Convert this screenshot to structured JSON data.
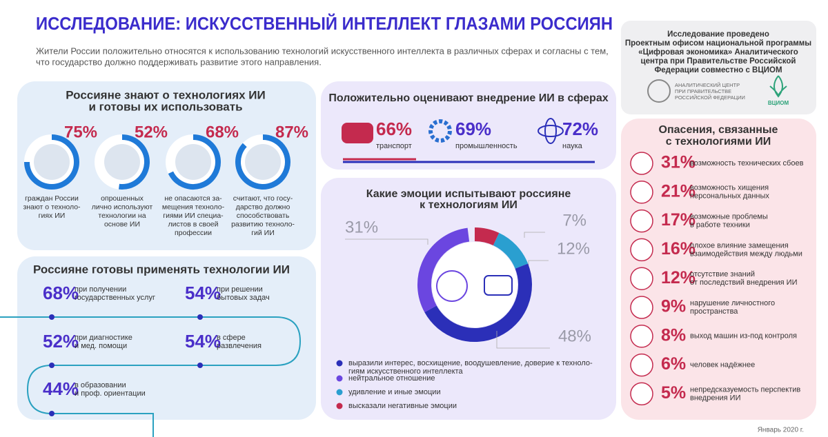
{
  "header": {
    "title": "ИССЛЕДОВАНИЕ: ИСКУССТВЕННЫЙ ИНТЕЛЛЕКТ ГЛАЗАМИ РОССИЯН",
    "subtitle": [
      "Жители России положительно относятся к использованию технологий искусственного интеллекта в различных сферах и согласны с тем,",
      "что государство должно поддерживать развитие этого направления."
    ]
  },
  "sponsor": {
    "text": [
      "Исследование проведено",
      "Проектным офисом национальной программы",
      "«Цифровая экономика» Аналитического",
      "центра при Правительстве Российской",
      "Федерации совместно с ВЦИОМ"
    ],
    "logo_text": [
      "АНАЛИТИЧЕСКИЙ ЦЕНТР",
      "ПРИ ПРАВИТЕЛЬСТВЕ",
      "РОССИЙСКОЙ ФЕДЕРАЦИИ"
    ],
    "logo_brand": "ВЦИОМ"
  },
  "know": {
    "title": [
      "Россияне знают о технологиях ИИ",
      "и готовы их использовать"
    ],
    "items": [
      {
        "value": 75,
        "value_label": "75%",
        "caption": [
          "граждан России",
          "знают о техноло-",
          "гиях ИИ"
        ]
      },
      {
        "value": 52,
        "value_label": "52%",
        "caption": [
          "опрошенных",
          "лично используют",
          "технологии на",
          "основе ИИ"
        ]
      },
      {
        "value": 68,
        "value_label": "68%",
        "caption": [
          "не опасаются за-",
          "мещения техноло-",
          "гиями ИИ специа-",
          "листов в своей",
          "профессии"
        ]
      },
      {
        "value": 87,
        "value_label": "87%",
        "caption": [
          "считают, что госу-",
          "дарство должно",
          "способствовать",
          "развитию техноло-",
          "гий ИИ"
        ]
      }
    ]
  },
  "ready": {
    "title": "Россияне готовы применять технологии ИИ",
    "items": [
      {
        "value_label": "68%",
        "text": [
          "при получении",
          "государственных услуг"
        ]
      },
      {
        "value_label": "54%",
        "text": [
          "при решении",
          "бытовых задач"
        ]
      },
      {
        "value_label": "52%",
        "text": [
          "при диагностике",
          "и мед. помощи"
        ]
      },
      {
        "value_label": "54%",
        "text": [
          "в сфере",
          "развлечения"
        ]
      },
      {
        "value_label": "44%",
        "text": [
          "в образовании",
          "и проф. ориентации"
        ]
      }
    ]
  },
  "sectors": {
    "title": "Положительно оценивают внедрение ИИ в сферах",
    "items": [
      {
        "value_label": "66%",
        "label": "транспорт"
      },
      {
        "value_label": "69%",
        "label": "промышленность"
      },
      {
        "value_label": "72%",
        "label": "наука"
      }
    ]
  },
  "emotions": {
    "title": [
      "Какие эмоции испытывают россияне",
      "к технологиям ИИ"
    ],
    "segments": [
      {
        "value": 7,
        "value_label": "7%",
        "color": "#c42a4e",
        "legend": [
          "высказали негативные эмоции"
        ]
      },
      {
        "value": 12,
        "value_label": "12%",
        "color": "#2a9fd0",
        "legend": [
          "удивление и иные эмоции"
        ]
      },
      {
        "value": 48,
        "value_label": "48%",
        "color": "#2b2fb8",
        "legend": [
          "выразили интерес, восхищение, воодушевление, доверие к техноло-",
          "гиям искусственного интеллекта"
        ]
      },
      {
        "value": 31,
        "value_label": "31%",
        "color": "#6b46e0",
        "legend": [
          "нейтральное отношение"
        ]
      }
    ]
  },
  "fears": {
    "title": [
      "Опасения, связанные",
      "с технологиями ИИ"
    ],
    "items": [
      {
        "value_label": "31%",
        "text": [
          "возможность технических сбоев"
        ]
      },
      {
        "value_label": "21%",
        "text": [
          "возможность хищения",
          "персональных данных"
        ]
      },
      {
        "value_label": "17%",
        "text": [
          "возможные проблемы",
          "в работе техники"
        ]
      },
      {
        "value_label": "16%",
        "text": [
          "плохое влияние замещения",
          "взаимодействия между людьми"
        ]
      },
      {
        "value_label": "12%",
        "text": [
          "отсутствие знаний",
          "от последствий внедрения ИИ"
        ]
      },
      {
        "value_label": "9%",
        "text": [
          "нарушение личностного",
          "пространства"
        ]
      },
      {
        "value_label": "8%",
        "text": [
          "выход машин из-под контроля"
        ]
      },
      {
        "value_label": "6%",
        "text": [
          "человек надёжнее"
        ]
      },
      {
        "value_label": "5%",
        "text": [
          "непредсказуемость перспектив",
          "внедрения ИИ"
        ]
      }
    ]
  },
  "footer": "Январь 2020 г."
}
